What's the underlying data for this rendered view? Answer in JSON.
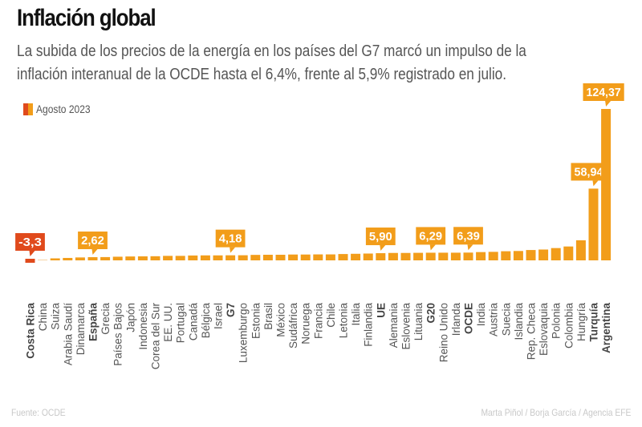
{
  "header": {
    "title": "Inflación global",
    "subtitle_lines": [
      "La subida de los precios de la energía en los países del G7 marcó un impulso de la",
      "inflación interanual de la OCDE hasta el 6,4%, frente al 5,9% registrado en julio."
    ]
  },
  "legend": {
    "label": "Agosto 2023"
  },
  "footer": {
    "source": "Fuente: OCDE",
    "credits": "Marta Piñol / Borja García / Agencia EFE"
  },
  "colors": {
    "bar": "#f29d1a",
    "negative": "#e04a1c",
    "label_text": "#555555",
    "callout_text": "#ffffff"
  },
  "chart_data": {
    "type": "bar",
    "title": "Inflación global",
    "xlabel": "",
    "ylabel": "",
    "grid": false,
    "legend": {
      "entries": [
        "Agosto 2023"
      ],
      "placement": "top-left"
    },
    "ylim": [
      -5,
      125
    ],
    "categories": [
      "Costa Rica",
      "China",
      "Suiza",
      "Arabia Saudí",
      "Dinamarca",
      "España",
      "Grecia",
      "Países Bajos",
      "Japón",
      "Indonesia",
      "Corea del Sur",
      "EE. UU.",
      "Portugal",
      "Canadá",
      "Bélgica",
      "Israel",
      "G7",
      "Luxemburgo",
      "Estonia",
      "Brasil",
      "México",
      "Sudáfrica",
      "Noruega",
      "Francia",
      "Chile",
      "Letonia",
      "Italia",
      "Finlandia",
      "UE",
      "Alemania",
      "Eslovenia",
      "Lituania",
      "G20",
      "Reino Unido",
      "Irlanda",
      "OCDE",
      "India",
      "Austria",
      "Suecia",
      "Islandia",
      "Rep. Checa",
      "Eslovaquia",
      "Polonia",
      "Colombia",
      "Hungría",
      "Turquía",
      "Argentina"
    ],
    "values": [
      -3.3,
      0.1,
      1.6,
      2.0,
      2.4,
      2.62,
      2.7,
      3.0,
      3.2,
      3.3,
      3.4,
      3.7,
      3.7,
      4.0,
      4.1,
      4.1,
      4.18,
      4.2,
      4.5,
      4.6,
      4.6,
      4.8,
      4.8,
      4.9,
      4.9,
      5.2,
      5.4,
      5.6,
      5.9,
      6.1,
      6.1,
      6.2,
      6.29,
      6.3,
      6.3,
      6.39,
      6.8,
      7.0,
      7.5,
      7.7,
      8.5,
      8.9,
      10.1,
      11.4,
      16.5,
      58.94,
      124.37
    ],
    "bold_categories": [
      "Costa Rica",
      "España",
      "G7",
      "UE",
      "G20",
      "OCDE",
      "Turquía",
      "Argentina"
    ],
    "annotations": [
      {
        "category": "Costa Rica",
        "label": "-3,3"
      },
      {
        "category": "España",
        "label": "2,62"
      },
      {
        "category": "G7",
        "label": "4,18"
      },
      {
        "category": "UE",
        "label": "5,90"
      },
      {
        "category": "G20",
        "label": "6,29"
      },
      {
        "category": "OCDE",
        "label": "6,39"
      },
      {
        "category": "Turquía",
        "label": "58,94"
      },
      {
        "category": "Argentina",
        "label": "124,37"
      }
    ]
  }
}
